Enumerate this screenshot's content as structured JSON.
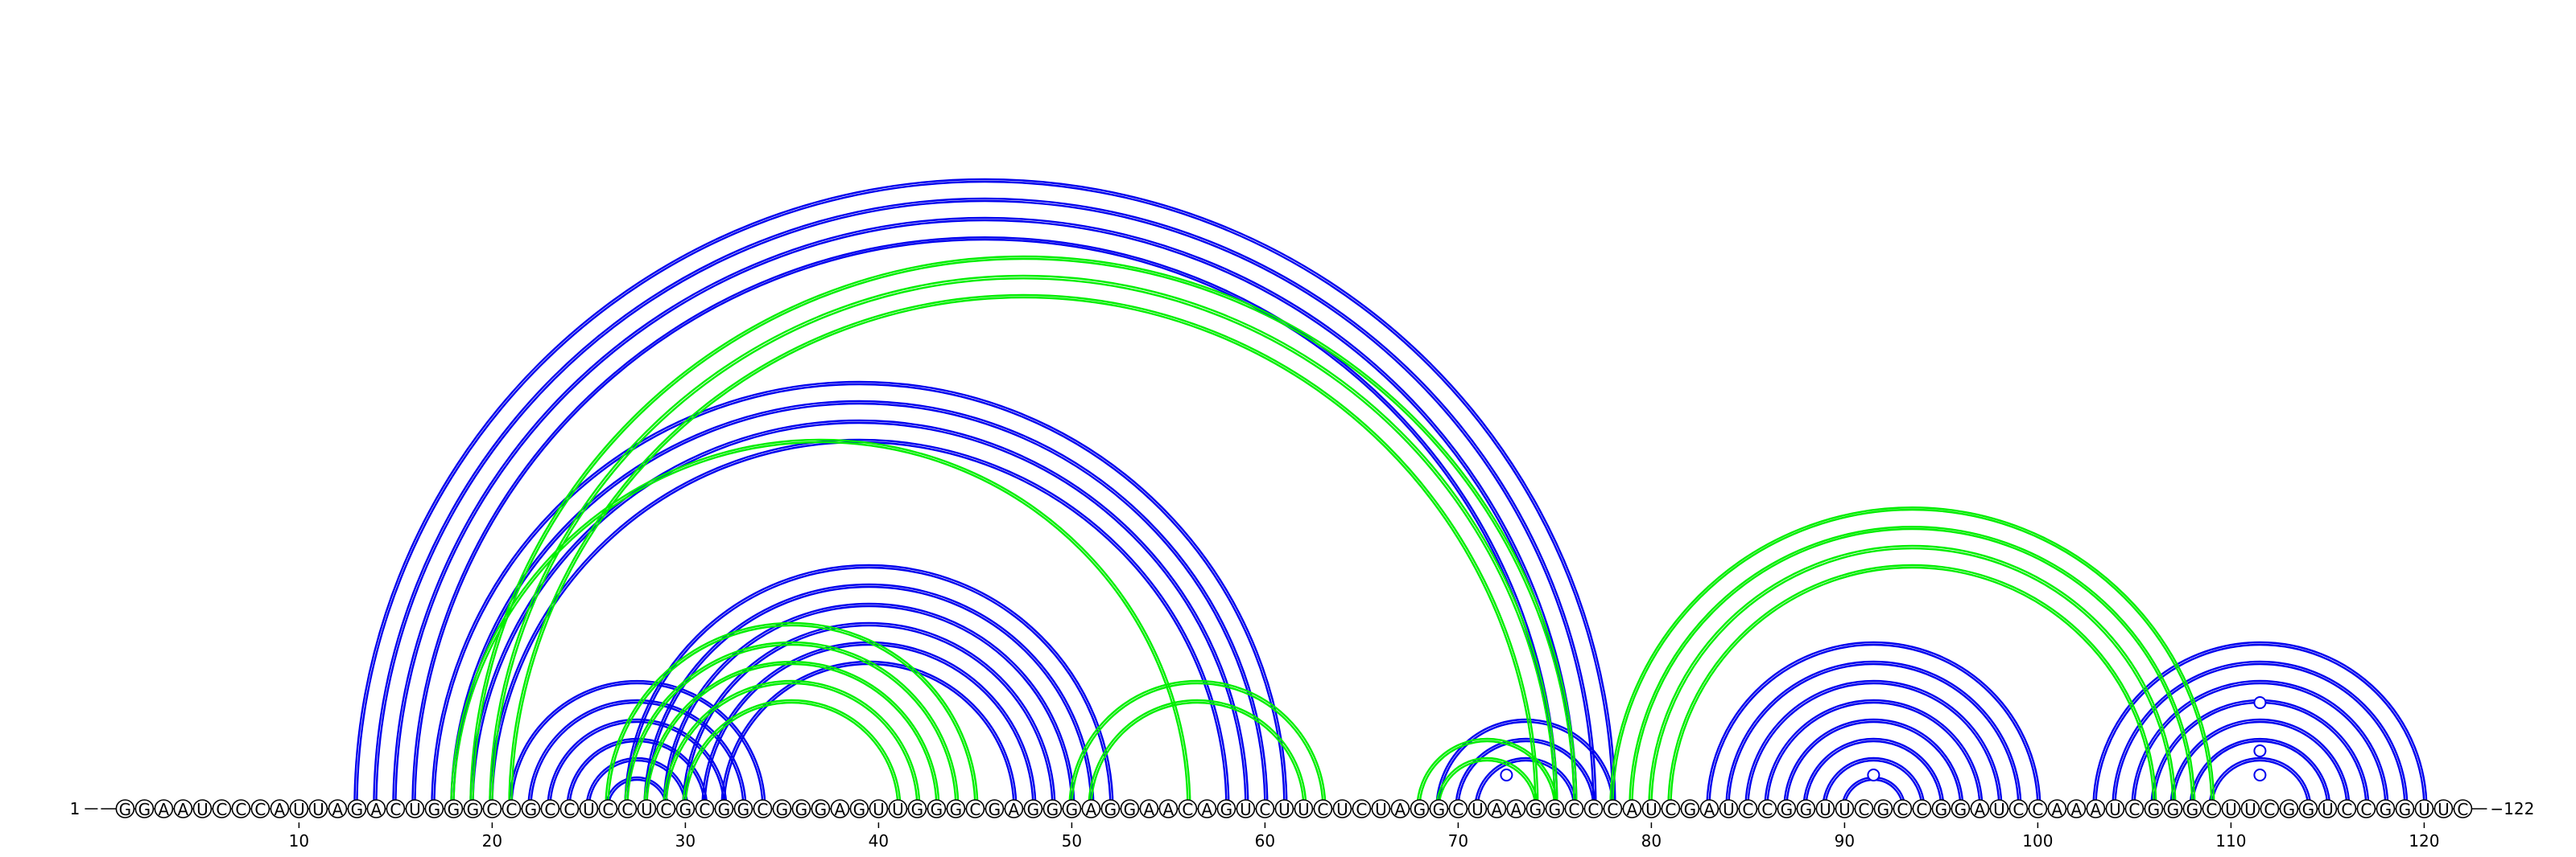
{
  "sequence": "GGAAUCCCAUUAGACUGGGCCGCCUCCUCGCGGCGGGAGUUGGGCGAGGGAGGAACAGUCUUCUCUAGGCUAAGGCCCAUCGAUCCGGUUCGCCGGAUCCAAAUCGGGCUUCGGUCCGGUUC",
  "start_label": "1",
  "end_label": "122",
  "tick_positions": [
    10,
    20,
    30,
    40,
    50,
    60,
    70,
    80,
    90,
    100,
    110,
    120
  ],
  "colors": {
    "blue": "#0000ee",
    "green": "#00ee00",
    "letter": "#000000"
  },
  "arc_groups": [
    {
      "color": "blue",
      "pairs": [
        [
          13,
          78
        ],
        [
          14,
          77
        ],
        [
          15,
          76
        ],
        [
          16,
          75
        ]
      ]
    },
    {
      "color": "blue",
      "pairs": [
        [
          17,
          61
        ],
        [
          18,
          60
        ],
        [
          19,
          59
        ],
        [
          20,
          58
        ]
      ]
    },
    {
      "color": "blue",
      "pairs": [
        [
          21,
          34
        ],
        [
          22,
          33
        ],
        [
          23,
          32
        ],
        [
          24,
          31
        ],
        [
          25,
          30
        ],
        [
          26,
          29
        ]
      ]
    },
    {
      "color": "blue",
      "pairs": [
        [
          27,
          52
        ],
        [
          28,
          51
        ],
        [
          29,
          50
        ],
        [
          30,
          49
        ],
        [
          31,
          48
        ],
        [
          32,
          47
        ]
      ]
    },
    {
      "color": "blue",
      "pairs": [
        [
          69,
          78
        ],
        [
          70,
          77
        ],
        [
          71,
          76
        ]
      ]
    },
    {
      "color": "blue",
      "pairs": [
        [
          83,
          100
        ],
        [
          84,
          99
        ],
        [
          85,
          98
        ],
        [
          86,
          97
        ],
        [
          87,
          96
        ],
        [
          88,
          95
        ],
        [
          89,
          94
        ],
        [
          90,
          93
        ]
      ]
    },
    {
      "color": "blue",
      "pairs": [
        [
          103,
          120
        ],
        [
          104,
          119
        ],
        [
          105,
          118
        ],
        [
          106,
          117
        ],
        [
          107,
          116
        ],
        [
          108,
          115
        ],
        [
          109,
          114
        ]
      ]
    },
    {
      "color": "green",
      "pairs": [
        [
          19,
          76
        ],
        [
          20,
          75
        ],
        [
          21,
          74
        ]
      ]
    },
    {
      "color": "green",
      "pairs": [
        [
          18,
          56
        ]
      ]
    },
    {
      "color": "green",
      "pairs": [
        [
          26,
          45
        ],
        [
          27,
          44
        ],
        [
          28,
          43
        ],
        [
          29,
          42
        ],
        [
          30,
          41
        ]
      ]
    },
    {
      "color": "green",
      "pairs": [
        [
          50,
          63
        ],
        [
          51,
          62
        ]
      ]
    },
    {
      "color": "green",
      "pairs": [
        [
          68,
          75
        ],
        [
          69,
          74
        ]
      ]
    },
    {
      "color": "green",
      "pairs": [
        [
          78,
          109
        ],
        [
          79,
          108
        ],
        [
          80,
          107
        ],
        [
          81,
          106
        ]
      ]
    }
  ],
  "hairpin_markers": [
    {
      "pos": 72.5,
      "level": 1,
      "color": "blue"
    },
    {
      "pos": 91.5,
      "level": 1,
      "color": "blue"
    },
    {
      "pos": 111.5,
      "level": 1,
      "color": "blue"
    },
    {
      "pos": 111.5,
      "level": 2,
      "color": "blue"
    },
    {
      "pos": 111.5,
      "level": 4,
      "color": "blue"
    }
  ]
}
